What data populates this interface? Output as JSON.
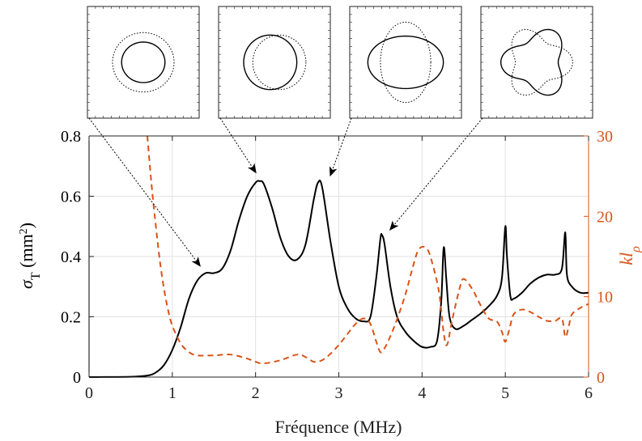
{
  "colors": {
    "primary": "#000000",
    "secondary": "#d95319",
    "grid": "#e2e2e2",
    "axis": "#222222"
  },
  "chart_data": {
    "type": "line",
    "xlabel": "Fréquence (MHz)",
    "ylabel": "σT (mm²)",
    "ylabel_parts": {
      "symbol": "σ",
      "sub": "T",
      "unit_open": " (mm",
      "unit_sup": "2",
      "unit_close": ")"
    },
    "y2label": "klρ",
    "y2label_parts": {
      "main": "kl",
      "sub": "ρ"
    },
    "xlim": [
      0,
      6
    ],
    "ylim": [
      0,
      0.8
    ],
    "y2lim": [
      0,
      30
    ],
    "grid": true,
    "x_ticks": [
      "0",
      "1",
      "2",
      "3",
      "4",
      "5",
      "6"
    ],
    "y_ticks": [
      "0",
      "0.2",
      "0.4",
      "0.6",
      "0.8"
    ],
    "y2_ticks": [
      "0",
      "10",
      "20",
      "30"
    ],
    "series": [
      {
        "axis": "left",
        "style": "solid",
        "color": "#000000",
        "points": [
          [
            0,
            0
          ],
          [
            0.5,
            0.001
          ],
          [
            0.7,
            0.005
          ],
          [
            0.8,
            0.015
          ],
          [
            0.9,
            0.04
          ],
          [
            1.0,
            0.09
          ],
          [
            1.1,
            0.165
          ],
          [
            1.2,
            0.26
          ],
          [
            1.3,
            0.32
          ],
          [
            1.4,
            0.345
          ],
          [
            1.5,
            0.345
          ],
          [
            1.6,
            0.36
          ],
          [
            1.7,
            0.42
          ],
          [
            1.8,
            0.52
          ],
          [
            1.9,
            0.6
          ],
          [
            2.0,
            0.645
          ],
          [
            2.05,
            0.65
          ],
          [
            2.1,
            0.64
          ],
          [
            2.2,
            0.56
          ],
          [
            2.3,
            0.46
          ],
          [
            2.4,
            0.4
          ],
          [
            2.5,
            0.39
          ],
          [
            2.6,
            0.44
          ],
          [
            2.7,
            0.59
          ],
          [
            2.75,
            0.645
          ],
          [
            2.8,
            0.63
          ],
          [
            2.9,
            0.45
          ],
          [
            3.0,
            0.3
          ],
          [
            3.1,
            0.23
          ],
          [
            3.2,
            0.195
          ],
          [
            3.3,
            0.185
          ],
          [
            3.38,
            0.2
          ],
          [
            3.45,
            0.33
          ],
          [
            3.5,
            0.46
          ],
          [
            3.52,
            0.47
          ],
          [
            3.55,
            0.44
          ],
          [
            3.62,
            0.3
          ],
          [
            3.7,
            0.2
          ],
          [
            3.8,
            0.15
          ],
          [
            3.9,
            0.12
          ],
          [
            4.0,
            0.1
          ],
          [
            4.1,
            0.1
          ],
          [
            4.18,
            0.12
          ],
          [
            4.23,
            0.25
          ],
          [
            4.26,
            0.43
          ],
          [
            4.29,
            0.33
          ],
          [
            4.33,
            0.2
          ],
          [
            4.4,
            0.16
          ],
          [
            4.5,
            0.17
          ],
          [
            4.6,
            0.19
          ],
          [
            4.7,
            0.21
          ],
          [
            4.8,
            0.235
          ],
          [
            4.9,
            0.27
          ],
          [
            4.96,
            0.33
          ],
          [
            5.0,
            0.5
          ],
          [
            5.02,
            0.4
          ],
          [
            5.06,
            0.27
          ],
          [
            5.1,
            0.26
          ],
          [
            5.2,
            0.28
          ],
          [
            5.3,
            0.31
          ],
          [
            5.4,
            0.33
          ],
          [
            5.5,
            0.34
          ],
          [
            5.6,
            0.34
          ],
          [
            5.68,
            0.36
          ],
          [
            5.72,
            0.48
          ],
          [
            5.74,
            0.34
          ],
          [
            5.8,
            0.3
          ],
          [
            5.9,
            0.28
          ],
          [
            6.0,
            0.28
          ]
        ]
      },
      {
        "axis": "right",
        "style": "dashed",
        "color": "#d95319",
        "points": [
          [
            0.7,
            30
          ],
          [
            0.75,
            24
          ],
          [
            0.8,
            19
          ],
          [
            0.85,
            14.5
          ],
          [
            0.9,
            11
          ],
          [
            0.95,
            8.3
          ],
          [
            1.0,
            6.4
          ],
          [
            1.1,
            4.2
          ],
          [
            1.2,
            3.1
          ],
          [
            1.3,
            2.7
          ],
          [
            1.5,
            2.7
          ],
          [
            1.7,
            2.8
          ],
          [
            1.9,
            2.3
          ],
          [
            2.0,
            1.9
          ],
          [
            2.1,
            1.7
          ],
          [
            2.3,
            2.1
          ],
          [
            2.5,
            2.8
          ],
          [
            2.6,
            2.5
          ],
          [
            2.7,
            1.9
          ],
          [
            2.8,
            2.1
          ],
          [
            2.9,
            2.9
          ],
          [
            3.0,
            4.0
          ],
          [
            3.1,
            5.3
          ],
          [
            3.2,
            6.6
          ],
          [
            3.3,
            7.3
          ],
          [
            3.38,
            6.6
          ],
          [
            3.45,
            4.4
          ],
          [
            3.5,
            3.1
          ],
          [
            3.55,
            3.6
          ],
          [
            3.62,
            5.1
          ],
          [
            3.7,
            7.2
          ],
          [
            3.8,
            10.3
          ],
          [
            3.9,
            14.1
          ],
          [
            3.95,
            15.7
          ],
          [
            4.0,
            16.2
          ],
          [
            4.05,
            16.0
          ],
          [
            4.1,
            15.0
          ],
          [
            4.2,
            10.8
          ],
          [
            4.26,
            5.5
          ],
          [
            4.3,
            4.0
          ],
          [
            4.36,
            7.0
          ],
          [
            4.45,
            11.0
          ],
          [
            4.5,
            12.2
          ],
          [
            4.6,
            11.0
          ],
          [
            4.7,
            9.0
          ],
          [
            4.8,
            7.3
          ],
          [
            4.9,
            6.9
          ],
          [
            4.96,
            5.6
          ],
          [
            5.0,
            4.4
          ],
          [
            5.05,
            6.0
          ],
          [
            5.1,
            7.8
          ],
          [
            5.2,
            8.4
          ],
          [
            5.3,
            8.1
          ],
          [
            5.4,
            7.5
          ],
          [
            5.5,
            7.0
          ],
          [
            5.6,
            7.0
          ],
          [
            5.68,
            7.3
          ],
          [
            5.72,
            5.0
          ],
          [
            5.76,
            6.2
          ],
          [
            5.8,
            7.8
          ],
          [
            5.9,
            8.6
          ],
          [
            6.0,
            9.1
          ]
        ]
      }
    ],
    "insets": [
      {
        "shape": "circle",
        "solid": {
          "rx": 0.62,
          "ry": 0.58,
          "dx": 0
        },
        "dotted": {
          "rx": 0.88,
          "ry": 0.85,
          "dx": 0
        }
      },
      {
        "shape": "dipole",
        "solid": {
          "rx": 0.76,
          "ry": 0.78,
          "dx": -0.12
        },
        "dotted": {
          "rx": 0.76,
          "ry": 0.78,
          "dx": 0.14
        }
      },
      {
        "shape": "quadrupole",
        "solid": {
          "rx": 1.08,
          "ry": 0.75,
          "dx": 0
        },
        "dotted": {
          "rx": 0.72,
          "ry": 1.15,
          "dx": 0
        }
      },
      {
        "shape": "triangle",
        "amp": 0.28,
        "order": 3,
        "base": 0.82
      }
    ],
    "arrows": [
      {
        "inset": 0,
        "target": [
          1.33,
          0.37
        ]
      },
      {
        "inset": 1,
        "target": [
          2.0,
          0.68
        ]
      },
      {
        "inset": 2,
        "target": [
          2.9,
          0.67
        ]
      },
      {
        "inset": 3,
        "target": [
          3.62,
          0.49
        ]
      }
    ]
  }
}
